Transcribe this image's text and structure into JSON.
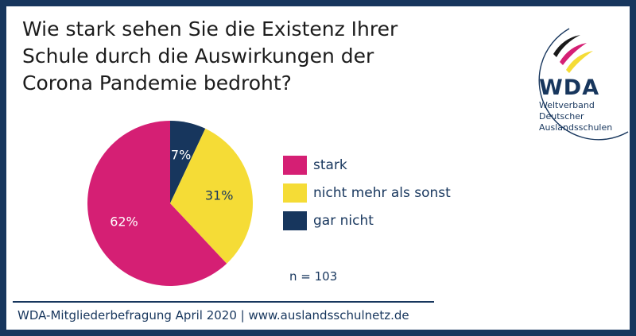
{
  "header": {
    "title_lines": [
      "Wie stark sehen Sie die Existenz Ihrer",
      "Schule durch die Auswirkungen der",
      "Corona Pandemie bedroht?"
    ]
  },
  "logo": {
    "name": "WDA",
    "lines": [
      "Weltverband",
      "Deutscher",
      "Auslandsschulen"
    ]
  },
  "chart_data": {
    "type": "pie",
    "title": "Wie stark sehen Sie die Existenz Ihrer Schule durch die Auswirkungen der Corona Pandemie bedroht?",
    "slices": [
      {
        "label": "gar nicht",
        "value": 7,
        "display": "7%",
        "color": "#17365d"
      },
      {
        "label": "nicht mehr als sonst",
        "value": 31,
        "display": "31%",
        "color": "#f5dc36"
      },
      {
        "label": "stark",
        "value": 62,
        "display": "62%",
        "color": "#d51f74"
      }
    ],
    "legend_order": [
      "stark",
      "nicht mehr als sonst",
      "gar nicht"
    ],
    "legend_position": "right",
    "note": "n = 103"
  },
  "footer": {
    "text": "WDA-Mitgliederbefragung April 2020 | www.auslandsschulnetz.de"
  },
  "colors": {
    "frame": "#17365d",
    "stark": "#d51f74",
    "nicht_mehr_als_sonst": "#f5dc36",
    "gar_nicht": "#17365d"
  }
}
